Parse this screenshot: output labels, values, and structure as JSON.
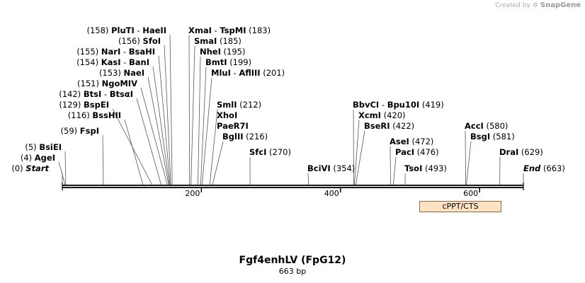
{
  "credit": {
    "prefix": "Created by",
    "brand": "SnapGene"
  },
  "title": "Fgf4enhLV (FpG12)",
  "length_text": "663 bp",
  "length_bp": 663,
  "ticks": [
    {
      "label": "200",
      "bp": 200
    },
    {
      "label": "400",
      "bp": 400
    },
    {
      "label": "600",
      "bp": 600
    }
  ],
  "features": [
    {
      "name": "cPPT/CTS",
      "color": "#fde2c4"
    }
  ],
  "sites": [
    {
      "pre": "(158)",
      "name": "PluTI",
      "name2": "HaeII",
      "post": "",
      "bp": 158
    },
    {
      "pre": "(156)",
      "name": "SfoI",
      "name2": "",
      "post": "",
      "bp": 156
    },
    {
      "pre": "(155)",
      "name": "NarI",
      "name2": "BsaHI",
      "post": "",
      "bp": 155
    },
    {
      "pre": "(154)",
      "name": "KasI",
      "name2": "BanI",
      "post": "",
      "bp": 154
    },
    {
      "pre": "(153)",
      "name": "NaeI",
      "name2": "",
      "post": "",
      "bp": 153
    },
    {
      "pre": "(151)",
      "name": "NgoMIV",
      "name2": "",
      "post": "",
      "bp": 151
    },
    {
      "pre": "(142)",
      "name": "BtsI",
      "name2": "BtsαI",
      "post": "",
      "bp": 142
    },
    {
      "pre": "(129)",
      "name": "BspEI",
      "name2": "",
      "post": "",
      "bp": 129
    },
    {
      "pre": "(116)",
      "name": "BssHII",
      "name2": "",
      "post": "",
      "bp": 116
    },
    {
      "pre": "(59)",
      "name": "FspI",
      "name2": "",
      "post": "",
      "bp": 59
    },
    {
      "pre": "(5)",
      "name": "BsiEI",
      "name2": "",
      "post": "",
      "bp": 5
    },
    {
      "pre": "(4)",
      "name": "AgeI",
      "name2": "",
      "post": "",
      "bp": 4
    },
    {
      "pre": "(0)",
      "name": "Start",
      "name2": "",
      "post": "",
      "bp": 0
    },
    {
      "pre": "",
      "name": "XmaI",
      "name2": "TspMI",
      "post": "(183)",
      "bp": 183
    },
    {
      "pre": "",
      "name": "SmaI",
      "name2": "",
      "post": "(185)",
      "bp": 185
    },
    {
      "pre": "",
      "name": "NheI",
      "name2": "",
      "post": "(195)",
      "bp": 195
    },
    {
      "pre": "",
      "name": "BmtI",
      "name2": "",
      "post": "(199)",
      "bp": 199
    },
    {
      "pre": "",
      "name": "MluI",
      "name2": "AflIII",
      "post": "(201)",
      "bp": 201
    },
    {
      "pre": "",
      "name": "SmlI",
      "name2": "",
      "post": "(212)",
      "bp": 212
    },
    {
      "pre": "",
      "name": "XhoI",
      "name2": "",
      "post": "",
      "bp": 212
    },
    {
      "pre": "",
      "name": "PaeR7I",
      "name2": "",
      "post": "",
      "bp": 212
    },
    {
      "pre": "",
      "name": "BglII",
      "name2": "",
      "post": "(216)",
      "bp": 216
    },
    {
      "pre": "",
      "name": "SfcI",
      "name2": "",
      "post": "(270)",
      "bp": 270
    },
    {
      "pre": "",
      "name": "BciVI",
      "name2": "",
      "post": "(354)",
      "bp": 354
    },
    {
      "pre": "",
      "name": "BbvCI",
      "name2": "Bpu10I",
      "post": "(419)",
      "bp": 419
    },
    {
      "pre": "",
      "name": "XcmI",
      "name2": "",
      "post": "(420)",
      "bp": 420
    },
    {
      "pre": "",
      "name": "BseRI",
      "name2": "",
      "post": "(422)",
      "bp": 422
    },
    {
      "pre": "",
      "name": "AseI",
      "name2": "",
      "post": "(472)",
      "bp": 472
    },
    {
      "pre": "",
      "name": "PacI",
      "name2": "",
      "post": "(476)",
      "bp": 476
    },
    {
      "pre": "",
      "name": "TsoI",
      "name2": "",
      "post": "(493)",
      "bp": 493
    },
    {
      "pre": "",
      "name": "AccI",
      "name2": "",
      "post": "(580)",
      "bp": 580
    },
    {
      "pre": "",
      "name": "BsgI",
      "name2": "",
      "post": "(581)",
      "bp": 581
    },
    {
      "pre": "",
      "name": "DraI",
      "name2": "",
      "post": "(629)",
      "bp": 629
    },
    {
      "pre": "",
      "name": "End",
      "name2": "",
      "post": "(663)",
      "bp": 663
    }
  ]
}
